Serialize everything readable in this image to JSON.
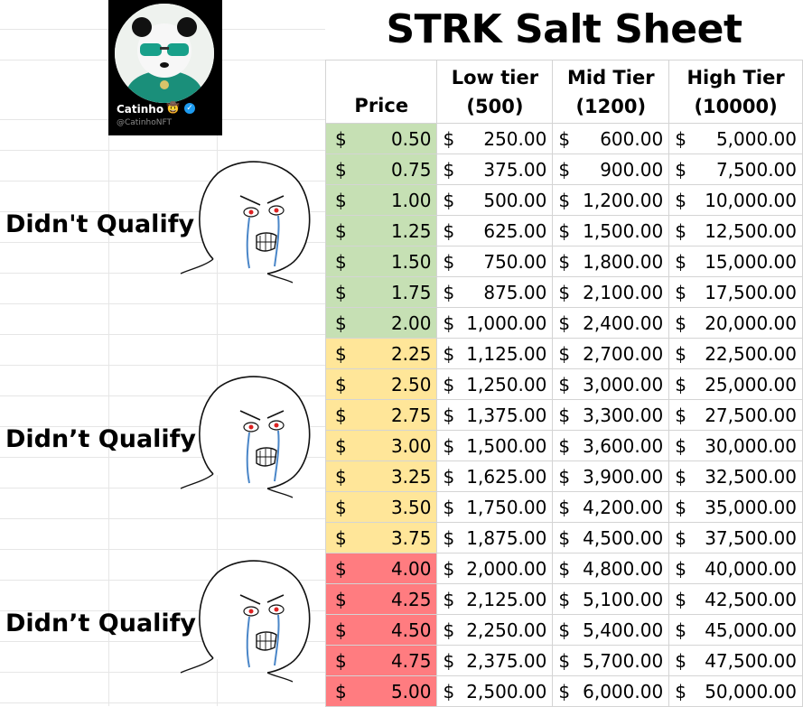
{
  "title": "STRK Salt Sheet",
  "profile": {
    "name": "Catinho",
    "handle": "@CatinhoNFT",
    "badge_icon": "verified-check-icon",
    "emoji_icon": "cowboy-emoji-icon"
  },
  "headers": {
    "price": "Price",
    "low": [
      "Low tier",
      "(500)"
    ],
    "mid": [
      "Mid Tier",
      "(1200)"
    ],
    "high": [
      "High Tier",
      "(10000)"
    ]
  },
  "colors": {
    "green": "#c6e0b4",
    "yellow": "#ffe699",
    "red": "#ff7c80"
  },
  "groups": [
    {
      "label": "Didn't Qualify",
      "color": "green",
      "icon": "crying-wojak-icon"
    },
    {
      "label": "Didn’t Qualify",
      "color": "yellow",
      "icon": "crying-wojak-icon"
    },
    {
      "label": "Didn’t Qualify",
      "color": "red",
      "icon": "crying-wojak-icon"
    }
  ],
  "currency": "$",
  "rows": [
    {
      "group": 0,
      "price": "0.50",
      "low": "250.00",
      "mid": "600.00",
      "high": "5,000.00"
    },
    {
      "group": 0,
      "price": "0.75",
      "low": "375.00",
      "mid": "900.00",
      "high": "7,500.00"
    },
    {
      "group": 0,
      "price": "1.00",
      "low": "500.00",
      "mid": "1,200.00",
      "high": "10,000.00"
    },
    {
      "group": 0,
      "price": "1.25",
      "low": "625.00",
      "mid": "1,500.00",
      "high": "12,500.00"
    },
    {
      "group": 0,
      "price": "1.50",
      "low": "750.00",
      "mid": "1,800.00",
      "high": "15,000.00"
    },
    {
      "group": 0,
      "price": "1.75",
      "low": "875.00",
      "mid": "2,100.00",
      "high": "17,500.00"
    },
    {
      "group": 0,
      "price": "2.00",
      "low": "1,000.00",
      "mid": "2,400.00",
      "high": "20,000.00"
    },
    {
      "group": 1,
      "price": "2.25",
      "low": "1,125.00",
      "mid": "2,700.00",
      "high": "22,500.00"
    },
    {
      "group": 1,
      "price": "2.50",
      "low": "1,250.00",
      "mid": "3,000.00",
      "high": "25,000.00"
    },
    {
      "group": 1,
      "price": "2.75",
      "low": "1,375.00",
      "mid": "3,300.00",
      "high": "27,500.00"
    },
    {
      "group": 1,
      "price": "3.00",
      "low": "1,500.00",
      "mid": "3,600.00",
      "high": "30,000.00"
    },
    {
      "group": 1,
      "price": "3.25",
      "low": "1,625.00",
      "mid": "3,900.00",
      "high": "32,500.00"
    },
    {
      "group": 1,
      "price": "3.50",
      "low": "1,750.00",
      "mid": "4,200.00",
      "high": "35,000.00"
    },
    {
      "group": 1,
      "price": "3.75",
      "low": "1,875.00",
      "mid": "4,500.00",
      "high": "37,500.00"
    },
    {
      "group": 2,
      "price": "4.00",
      "low": "2,000.00",
      "mid": "4,800.00",
      "high": "40,000.00"
    },
    {
      "group": 2,
      "price": "4.25",
      "low": "2,125.00",
      "mid": "5,100.00",
      "high": "42,500.00"
    },
    {
      "group": 2,
      "price": "4.50",
      "low": "2,250.00",
      "mid": "5,400.00",
      "high": "45,000.00"
    },
    {
      "group": 2,
      "price": "4.75",
      "low": "2,375.00",
      "mid": "5,700.00",
      "high": "47,500.00"
    },
    {
      "group": 2,
      "price": "5.00",
      "low": "2,500.00",
      "mid": "6,000.00",
      "high": "50,000.00"
    }
  ]
}
